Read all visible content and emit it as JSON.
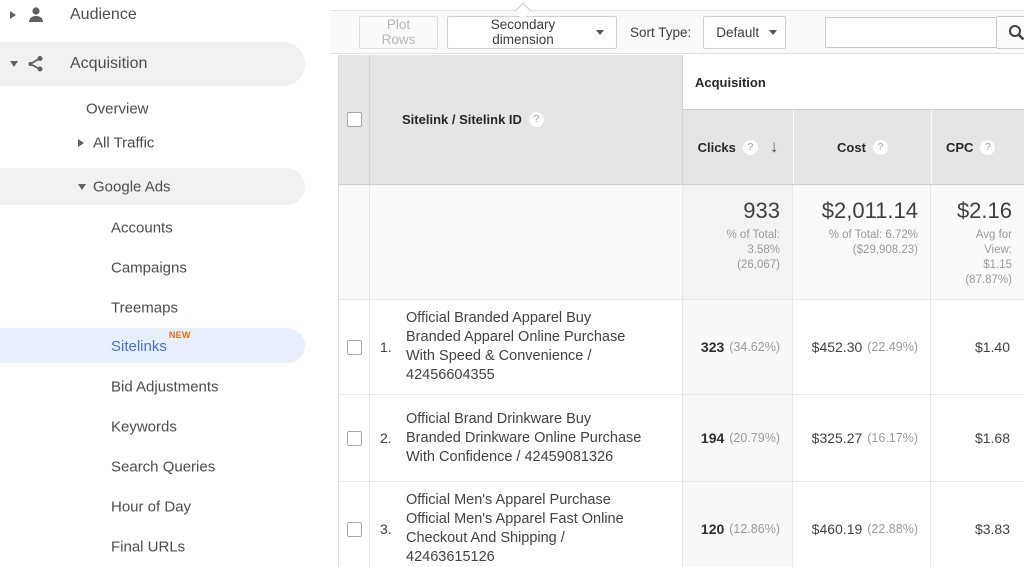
{
  "colors": {
    "selected_blue": "#4272db",
    "new_badge_orange": "#e8710a",
    "sidebar_pill_gray": "#f0f1f1",
    "sidebar_pill_blue": "#e7effd",
    "table_header_gray": "#e5e5e5",
    "sorted_column_bg": "#f8f8f8"
  },
  "sidebar": {
    "items": [
      {
        "label": "Audience",
        "level": 1,
        "arrow": "right",
        "icon": "person",
        "pill": null,
        "badge": null,
        "selected": false
      },
      {
        "label": "Acquisition",
        "level": 1,
        "arrow": "down",
        "icon": "acquisition",
        "pill": "gray",
        "badge": null,
        "selected": false
      },
      {
        "label": "Overview",
        "level": 2,
        "arrow": null,
        "icon": null,
        "pill": null,
        "badge": null,
        "selected": false
      },
      {
        "label": "All Traffic",
        "level": 2,
        "arrow": "right",
        "icon": null,
        "pill": null,
        "badge": null,
        "selected": false
      },
      {
        "label": "Google Ads",
        "level": 2,
        "arrow": "down",
        "icon": null,
        "pill": "gray",
        "badge": null,
        "selected": false
      },
      {
        "label": "Accounts",
        "level": 3,
        "arrow": null,
        "icon": null,
        "pill": null,
        "badge": null,
        "selected": false
      },
      {
        "label": "Campaigns",
        "level": 3,
        "arrow": null,
        "icon": null,
        "pill": null,
        "badge": null,
        "selected": false
      },
      {
        "label": "Treemaps",
        "level": 3,
        "arrow": null,
        "icon": null,
        "pill": null,
        "badge": null,
        "selected": false
      },
      {
        "label": "Sitelinks",
        "level": 3,
        "arrow": null,
        "icon": null,
        "pill": "blue",
        "badge": "NEW",
        "selected": true
      },
      {
        "label": "Bid Adjustments",
        "level": 3,
        "arrow": null,
        "icon": null,
        "pill": null,
        "badge": null,
        "selected": false
      },
      {
        "label": "Keywords",
        "level": 3,
        "arrow": null,
        "icon": null,
        "pill": null,
        "badge": null,
        "selected": false
      },
      {
        "label": "Search Queries",
        "level": 3,
        "arrow": null,
        "icon": null,
        "pill": null,
        "badge": null,
        "selected": false
      },
      {
        "label": "Hour of Day",
        "level": 3,
        "arrow": null,
        "icon": null,
        "pill": null,
        "badge": null,
        "selected": false
      },
      {
        "label": "Final URLs",
        "level": 3,
        "arrow": null,
        "icon": null,
        "pill": null,
        "badge": null,
        "selected": false
      }
    ]
  },
  "toolbar": {
    "plot_rows": "Plot Rows",
    "secondary_dimension": "Secondary dimension",
    "sort_type_label": "Sort Type:",
    "sort_type_value": "Default",
    "search_placeholder": ""
  },
  "table": {
    "group_header": "Acquisition",
    "dimension_header": "Sitelink / Sitelink ID",
    "columns": [
      {
        "label": "Clicks",
        "sorted": "descending"
      },
      {
        "label": "Cost",
        "sorted": null
      },
      {
        "label": "CPC",
        "sorted": null
      }
    ],
    "totals": {
      "clicks": {
        "value": "933",
        "sub": [
          "% of Total:",
          "3.58%",
          "(26,067)"
        ]
      },
      "cost": {
        "value": "$2,011.14",
        "sub": [
          "% of Total: 6.72%",
          "($29,908.23)"
        ]
      },
      "cpc": {
        "value": "$2.16",
        "sub": [
          "Avg for",
          "View:",
          "$1.15",
          "(87.87%)"
        ]
      }
    },
    "rows": [
      {
        "num": "1.",
        "sitelink_lines": [
          "Official Branded Apparel Buy",
          "Branded Apparel Online Purchase",
          "With Speed & Convenience /",
          "42456604355"
        ],
        "clicks": "323",
        "clicks_pct": "(34.62%)",
        "cost": "$452.30",
        "cost_pct": "(22.49%)",
        "cpc": "$1.40"
      },
      {
        "num": "2.",
        "sitelink_lines": [
          "Official Brand Drinkware Buy",
          "Branded Drinkware Online Purchase",
          "With Confidence / 42459081326"
        ],
        "clicks": "194",
        "clicks_pct": "(20.79%)",
        "cost": "$325.27",
        "cost_pct": "(16.17%)",
        "cpc": "$1.68"
      },
      {
        "num": "3.",
        "sitelink_lines": [
          "Official Men's Apparel Purchase",
          "Official Men's Apparel Fast Online",
          "Checkout And Shipping /",
          "42463615126"
        ],
        "clicks": "120",
        "clicks_pct": "(12.86%)",
        "cost": "$460.19",
        "cost_pct": "(22.88%)",
        "cpc": "$3.83"
      }
    ]
  }
}
